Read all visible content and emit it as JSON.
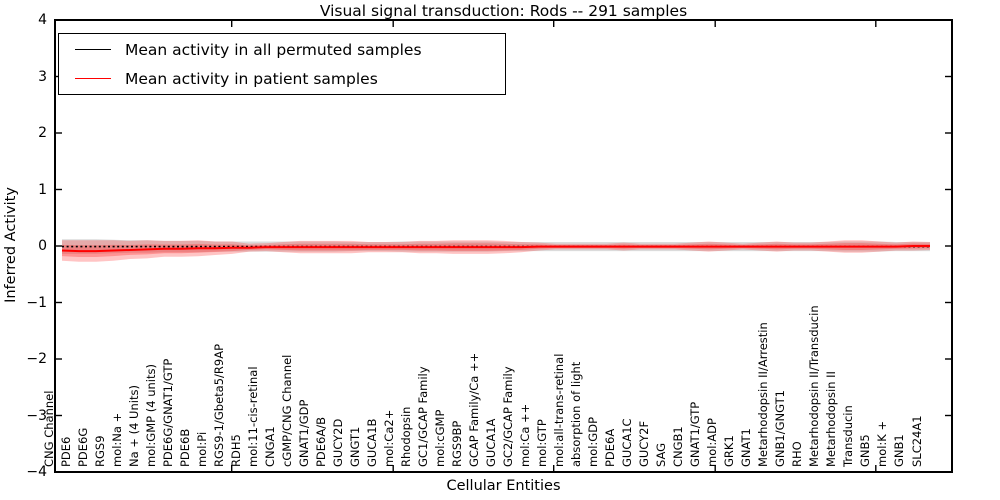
{
  "title": "Visual signal transduction: Rods -- 291 samples",
  "axes": {
    "xlabel": "Cellular Entities",
    "ylabel": "Inferred Activity",
    "ytick_labels": [
      "4",
      "3",
      "2",
      "1",
      "0",
      "−1",
      "−2",
      "−3",
      "−4"
    ],
    "ytick_values": [
      4,
      3,
      2,
      1,
      0,
      -1,
      -2,
      -3,
      -4
    ]
  },
  "legend": {
    "entries": [
      {
        "label": "Mean activity in all permuted samples",
        "color": "#000000"
      },
      {
        "label": "Mean activity in patient samples",
        "color": "#ff0000"
      }
    ]
  },
  "chart_data": {
    "type": "line",
    "title": "Visual signal transduction: Rods -- 291 samples",
    "xlabel": "Cellular Entities",
    "ylabel": "Inferred Activity",
    "ylim": [
      -4,
      4
    ],
    "grid": false,
    "legend_position": "upper left",
    "categories": [
      "CNG Channel",
      "PDE6",
      "PDE6G",
      "RGS9",
      "mol:Na +",
      "Na + (4 Units)",
      "mol:GMP (4 units)",
      "PDE6G/GNAT1/GTP",
      "PDE6B",
      "mol:Pi",
      "RGS9-1/Gbeta5/R9AP",
      "RDH5",
      "mol:11-cis-retinal",
      "CNGA1",
      "cGMP/CNG Channel",
      "GNAT1/GDP",
      "PDE6A/B",
      "GUCY2D",
      "GNGT1",
      "GUCA1B",
      "mol:Ca2+",
      "Rhodopsin",
      "GC1/GCAP Family",
      "mol:cGMP",
      "RGS9BP",
      "GCAP Family/Ca ++",
      "GUCA1A",
      "GC2/GCAP Family",
      "mol:Ca ++",
      "mol:GTP",
      "mol:all-trans-retinal",
      "absorption of light",
      "mol:GDP",
      "PDE6A",
      "GUCA1C",
      "GUCY2F",
      "SAG",
      "CNGB1",
      "GNAT1/GTP",
      "mol:ADP",
      "GRK1",
      "GNAT1",
      "Metarhodopsin II/Arrestin",
      "GNB1/GNGT1",
      "RHO",
      "Metarhodopsin II/Transducin",
      "Metarhodopsin II",
      "Transducin",
      "GNB5",
      "mol:K +",
      "GNB1",
      "SLC24A1"
    ],
    "series": [
      {
        "name": "Mean activity in all permuted samples",
        "color": "#000000",
        "style": "dotted",
        "values": [
          -0.01,
          -0.01,
          -0.01,
          -0.01,
          -0.01,
          -0.01,
          -0.01,
          -0.01,
          -0.01,
          -0.01,
          -0.01,
          -0.01,
          -0.01,
          -0.01,
          -0.01,
          -0.01,
          -0.01,
          -0.01,
          -0.01,
          -0.01,
          -0.01,
          -0.01,
          -0.01,
          -0.01,
          -0.01,
          -0.01,
          -0.01,
          -0.01,
          -0.01,
          -0.01,
          -0.01,
          -0.01,
          -0.01,
          -0.01,
          -0.01,
          -0.01,
          -0.01,
          -0.01,
          -0.01,
          -0.01,
          -0.01,
          -0.01,
          -0.01,
          -0.01,
          -0.01,
          -0.01,
          -0.01,
          -0.01,
          -0.01,
          -0.01,
          -0.01,
          -0.01
        ]
      },
      {
        "name": "Mean activity in patient samples",
        "color": "#ff0000",
        "style": "solid",
        "values": [
          -0.08,
          -0.09,
          -0.09,
          -0.08,
          -0.07,
          -0.06,
          -0.05,
          -0.05,
          -0.04,
          -0.04,
          -0.03,
          -0.03,
          -0.02,
          -0.02,
          -0.02,
          -0.02,
          -0.02,
          -0.02,
          -0.02,
          -0.02,
          -0.02,
          -0.02,
          -0.02,
          -0.02,
          -0.02,
          -0.02,
          -0.02,
          -0.02,
          -0.01,
          -0.01,
          -0.01,
          -0.01,
          -0.01,
          -0.01,
          -0.01,
          -0.01,
          -0.01,
          -0.01,
          -0.01,
          -0.01,
          -0.01,
          -0.01,
          -0.01,
          -0.01,
          -0.01,
          -0.01,
          -0.01,
          -0.01,
          -0.01,
          -0.01,
          0.0,
          0.0
        ]
      }
    ],
    "bands": [
      {
        "name": "permuted-samples-range",
        "center_series": 0,
        "color": "#999999",
        "opacity": 0.35,
        "half_widths": [
          0.13,
          0.13,
          0.13,
          0.12,
          0.11,
          0.11,
          0.1,
          0.1,
          0.1,
          0.09,
          0.09,
          0.09,
          0.09,
          0.09,
          0.09,
          0.09,
          0.09,
          0.08,
          0.08,
          0.08,
          0.09,
          0.09,
          0.09,
          0.09,
          0.09,
          0.09,
          0.08,
          0.08,
          0.08,
          0.08,
          0.08,
          0.08,
          0.08,
          0.08,
          0.08,
          0.08,
          0.08,
          0.08,
          0.08,
          0.08,
          0.08,
          0.08,
          0.08,
          0.08,
          0.08,
          0.08,
          0.09,
          0.09,
          0.09,
          0.08,
          0.08,
          0.08
        ]
      },
      {
        "name": "patient-samples-range",
        "center_series": 1,
        "color": "#ff2a2a",
        "opacity": 0.28,
        "inner_band_scale": 0.55,
        "half_widths": [
          0.18,
          0.19,
          0.19,
          0.18,
          0.16,
          0.16,
          0.14,
          0.14,
          0.14,
          0.12,
          0.11,
          0.07,
          0.07,
          0.09,
          0.11,
          0.11,
          0.11,
          0.11,
          0.09,
          0.09,
          0.09,
          0.11,
          0.11,
          0.12,
          0.12,
          0.12,
          0.11,
          0.09,
          0.07,
          0.05,
          0.05,
          0.05,
          0.05,
          0.07,
          0.05,
          0.05,
          0.05,
          0.07,
          0.09,
          0.07,
          0.05,
          0.07,
          0.09,
          0.07,
          0.07,
          0.09,
          0.11,
          0.11,
          0.09,
          0.07,
          0.08,
          0.07
        ]
      }
    ]
  }
}
